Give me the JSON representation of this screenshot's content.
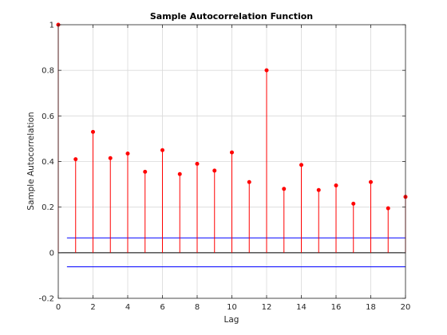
{
  "chart_data": {
    "type": "stem",
    "title": "Sample Autocorrelation Function",
    "xlabel": "Lag",
    "ylabel": "Sample Autocorrelation",
    "xlim": [
      0,
      20
    ],
    "ylim": [
      -0.2,
      1
    ],
    "xticks": [
      0,
      2,
      4,
      6,
      8,
      10,
      12,
      14,
      16,
      18,
      20
    ],
    "yticks": [
      -0.2,
      0,
      0.2,
      0.4,
      0.6,
      0.8,
      1
    ],
    "ytick_labels": [
      "-0.2",
      "0",
      "0.2",
      "0.4",
      "0.6",
      "0.8",
      "1"
    ],
    "grid": true,
    "lags": [
      0,
      1,
      2,
      3,
      4,
      5,
      6,
      7,
      8,
      9,
      10,
      11,
      12,
      13,
      14,
      15,
      16,
      17,
      18,
      19,
      20
    ],
    "values": [
      1.0,
      0.41,
      0.53,
      0.415,
      0.435,
      0.355,
      0.45,
      0.345,
      0.39,
      0.36,
      0.44,
      0.31,
      0.8,
      0.28,
      0.385,
      0.275,
      0.295,
      0.215,
      0.31,
      0.195,
      0.245
    ],
    "confidence_bounds": {
      "upper": 0.065,
      "lower": -0.062,
      "x_start": 0.5,
      "x_end": 20
    },
    "colors": {
      "stem": "#ff0000",
      "marker": "#ff0000",
      "bounds": "#0000ff",
      "zero_line": "#000000",
      "grid": "#d9d9d9",
      "axes": "#262626"
    }
  }
}
